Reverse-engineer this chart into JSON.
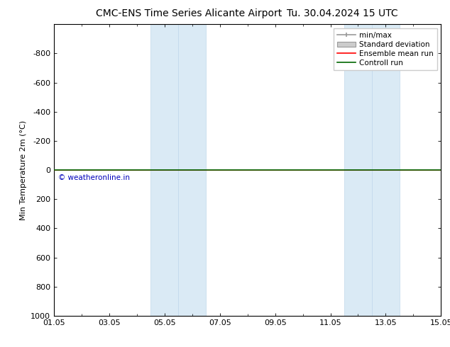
{
  "title_left": "CMC-ENS Time Series Alicante Airport",
  "title_right": "Tu. 30.04.2024 15 UTC",
  "ylabel": "Min Temperature 2m (°C)",
  "ylim_bottom": -1000,
  "ylim_top": 1000,
  "yticks": [
    -800,
    -600,
    -400,
    -200,
    0,
    200,
    400,
    600,
    800,
    1000
  ],
  "xtick_labels": [
    "01.05",
    "03.05",
    "05.05",
    "07.05",
    "09.05",
    "11.05",
    "13.05",
    "15.05"
  ],
  "xtick_positions": [
    0,
    2,
    4,
    6,
    8,
    10,
    12,
    14
  ],
  "xlim": [
    0,
    14
  ],
  "shaded_regions": [
    [
      3.5,
      4.5
    ],
    [
      4.5,
      5.5
    ],
    [
      10.5,
      11.5
    ],
    [
      11.5,
      12.5
    ]
  ],
  "shaded_color": "#daeaf5",
  "shaded_border_color": "#c0d8ec",
  "ensemble_mean_y": 0,
  "control_run_y": 0,
  "ensemble_mean_color": "#ff0000",
  "control_run_color": "#006600",
  "copyright_text": "© weatheronline.in",
  "copyright_color": "#0000bb",
  "legend_items": [
    "min/max",
    "Standard deviation",
    "Ensemble mean run",
    "Controll run"
  ],
  "background_color": "#ffffff",
  "title_fontsize": 10,
  "axis_label_fontsize": 8,
  "tick_fontsize": 8,
  "legend_fontsize": 7.5
}
